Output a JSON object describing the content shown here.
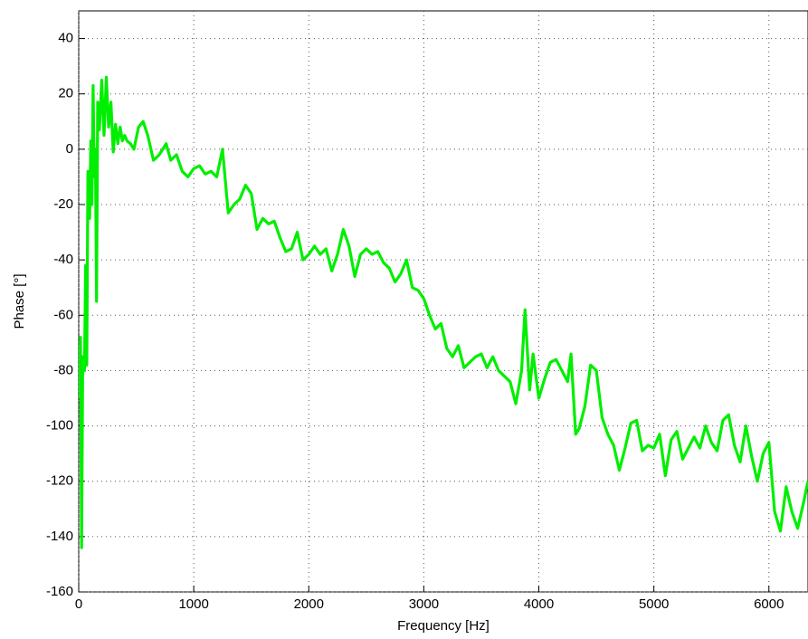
{
  "chart_data": {
    "type": "line",
    "xlabel": "Frequency [Hz]",
    "ylabel": "Phase [°]",
    "xlim": [
      0,
      6340
    ],
    "ylim": [
      -160,
      50
    ],
    "xticks": [
      0,
      1000,
      2000,
      3000,
      4000,
      5000,
      6000
    ],
    "yticks": [
      -160,
      -140,
      -120,
      -100,
      -80,
      -60,
      -40,
      -20,
      0,
      20,
      40
    ],
    "grid": true,
    "x": [
      0,
      15,
      25,
      35,
      50,
      60,
      70,
      80,
      95,
      105,
      115,
      125,
      135,
      145,
      155,
      165,
      180,
      200,
      220,
      240,
      260,
      280,
      300,
      320,
      340,
      360,
      380,
      400,
      420,
      450,
      480,
      520,
      560,
      600,
      650,
      700,
      760,
      800,
      850,
      900,
      950,
      1000,
      1050,
      1100,
      1150,
      1200,
      1250,
      1300,
      1350,
      1400,
      1450,
      1500,
      1550,
      1600,
      1650,
      1700,
      1750,
      1800,
      1850,
      1900,
      1950,
      2000,
      2050,
      2100,
      2150,
      2200,
      2250,
      2300,
      2350,
      2400,
      2450,
      2500,
      2550,
      2600,
      2650,
      2700,
      2750,
      2800,
      2850,
      2900,
      2950,
      3000,
      3050,
      3100,
      3150,
      3200,
      3250,
      3300,
      3350,
      3400,
      3450,
      3500,
      3550,
      3600,
      3650,
      3700,
      3750,
      3800,
      3850,
      3880,
      3920,
      3950,
      4000,
      4050,
      4100,
      4150,
      4200,
      4250,
      4280,
      4320,
      4350,
      4400,
      4450,
      4500,
      4550,
      4600,
      4650,
      4700,
      4750,
      4800,
      4850,
      4900,
      4950,
      5000,
      5050,
      5100,
      5150,
      5200,
      5250,
      5300,
      5350,
      5400,
      5450,
      5500,
      5550,
      5600,
      5650,
      5700,
      5750,
      5800,
      5850,
      5900,
      5950,
      6000,
      6050,
      6100,
      6150,
      6200,
      6250,
      6300,
      6340
    ],
    "series": [
      {
        "color": "#00ee00",
        "values": [
          -90,
          -68,
          -144,
          -75,
          -80,
          -42,
          -78,
          -8,
          -25,
          3,
          -20,
          23,
          -10,
          0,
          -55,
          17,
          7,
          25,
          5,
          26,
          8,
          17,
          -1,
          9,
          2,
          8,
          3,
          5,
          3,
          2,
          0,
          8,
          10,
          5,
          -4,
          -2,
          2,
          -4,
          -2,
          -8,
          -10,
          -7,
          -6,
          -9,
          -8,
          -10,
          0,
          -23,
          -20,
          -18,
          -13,
          -16,
          -29,
          -25,
          -27,
          -26,
          -32,
          -37,
          -36,
          -30,
          -40,
          -38,
          -35,
          -38,
          -36,
          -44,
          -38,
          -29,
          -35,
          -46,
          -38,
          -36,
          -38,
          -37,
          -41,
          -43,
          -48,
          -45,
          -40,
          -50,
          -51,
          -54,
          -60,
          -65,
          -63,
          -72,
          -75,
          -71,
          -79,
          -77,
          -75,
          -74,
          -79,
          -75,
          -80,
          -82,
          -84,
          -92,
          -80,
          -58,
          -87,
          -74,
          -90,
          -83,
          -77,
          -76,
          -80,
          -84,
          -74,
          -103,
          -101,
          -93,
          -78,
          -80,
          -97,
          -103,
          -107,
          -116,
          -108,
          -99,
          -98,
          -109,
          -107,
          -108,
          -103,
          -118,
          -105,
          -102,
          -112,
          -108,
          -104,
          -108,
          -100,
          -106,
          -109,
          -98,
          -96,
          -107,
          -113,
          -100,
          -111,
          -120,
          -110,
          -106,
          -131,
          -138,
          -122,
          -131,
          -137,
          -128,
          -120
        ]
      }
    ]
  }
}
